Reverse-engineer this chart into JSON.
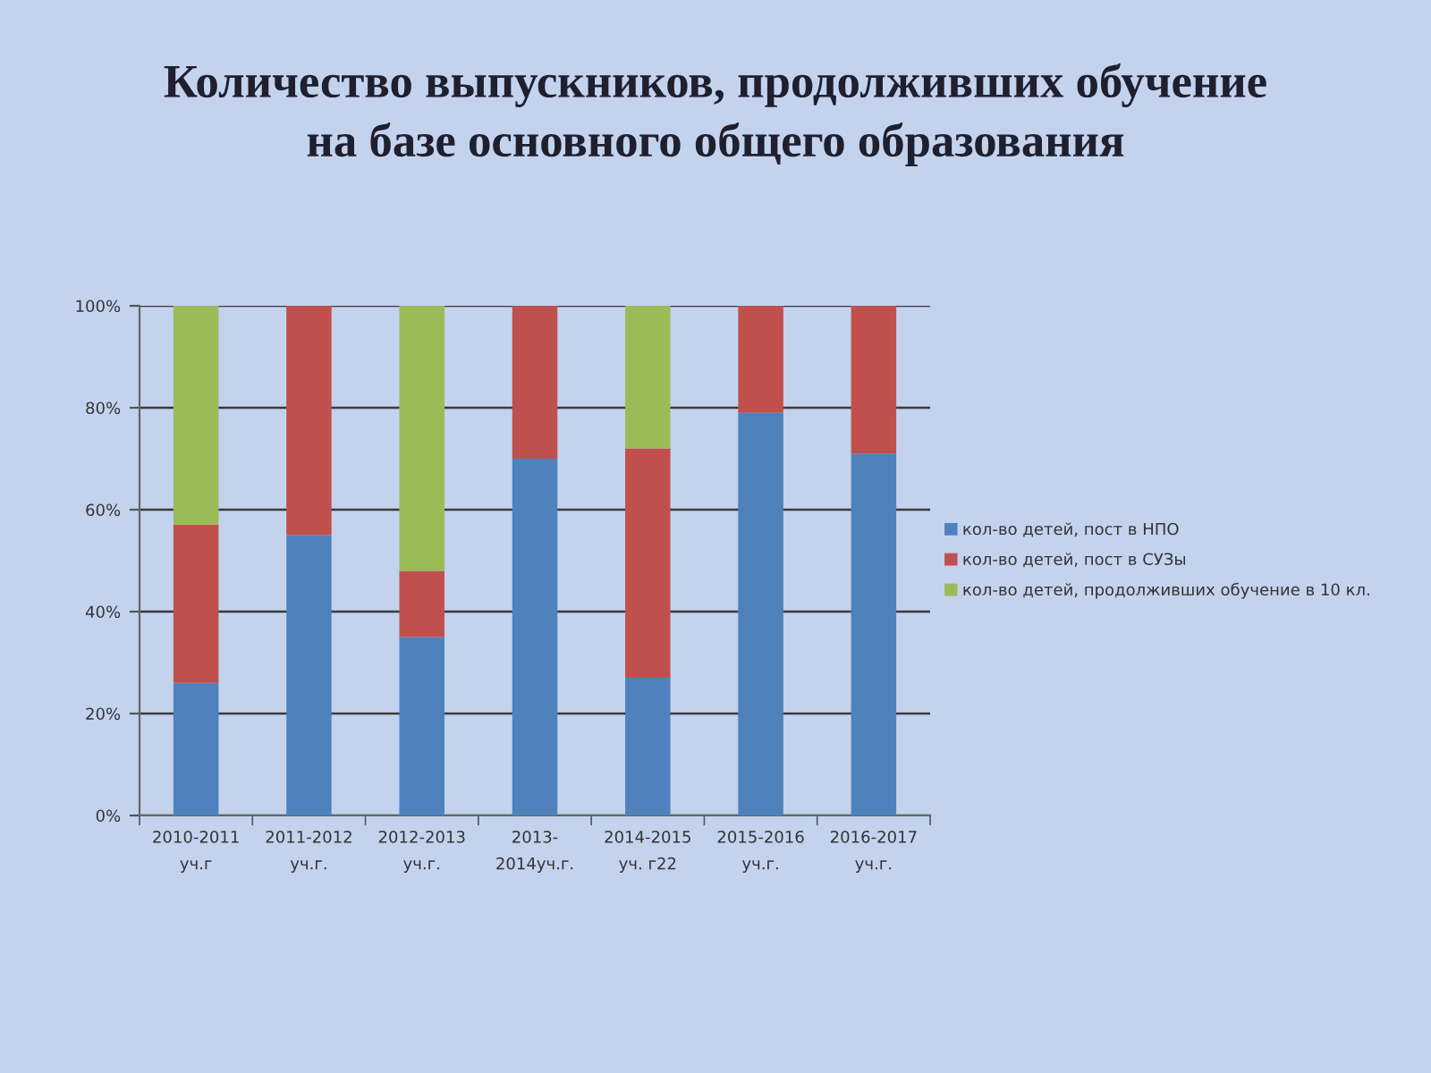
{
  "chart_data": {
    "type": "bar",
    "stacked": true,
    "title": "Количество выпускников, продолживших обучение\nна базе основного общего образования",
    "categories": [
      "2010-2011\nуч.г",
      "2011-2012\nуч.г.",
      "2012-2013\nуч.г.",
      "2013-\n2014уч.г.",
      "2014-2015\nуч. г22",
      "2015-2016\nуч.г.",
      "2016-2017\nуч.г."
    ],
    "series": [
      {
        "name": "кол-во детей, пост в НПО",
        "color": "#4f81bd",
        "values": [
          26,
          55,
          35,
          70,
          27,
          79,
          71
        ]
      },
      {
        "name": "кол-во детей, пост в СУЗы",
        "color": "#c0504d",
        "values": [
          31,
          45,
          13,
          30,
          45,
          21,
          29
        ]
      },
      {
        "name": "кол-во детей, продолживших обучение в 10 кл.",
        "color": "#9bbb59",
        "values": [
          43,
          null,
          52,
          null,
          28,
          null,
          null
        ]
      }
    ],
    "ylim": [
      0,
      100
    ],
    "yticks": [
      {
        "value": 0,
        "label": "0%"
      },
      {
        "value": 20,
        "label": "20%"
      },
      {
        "value": 40,
        "label": "40%"
      },
      {
        "value": 60,
        "label": "60%"
      },
      {
        "value": 80,
        "label": "80%"
      },
      {
        "value": 100,
        "label": "100%"
      }
    ],
    "grid": "y",
    "legend": "right"
  }
}
